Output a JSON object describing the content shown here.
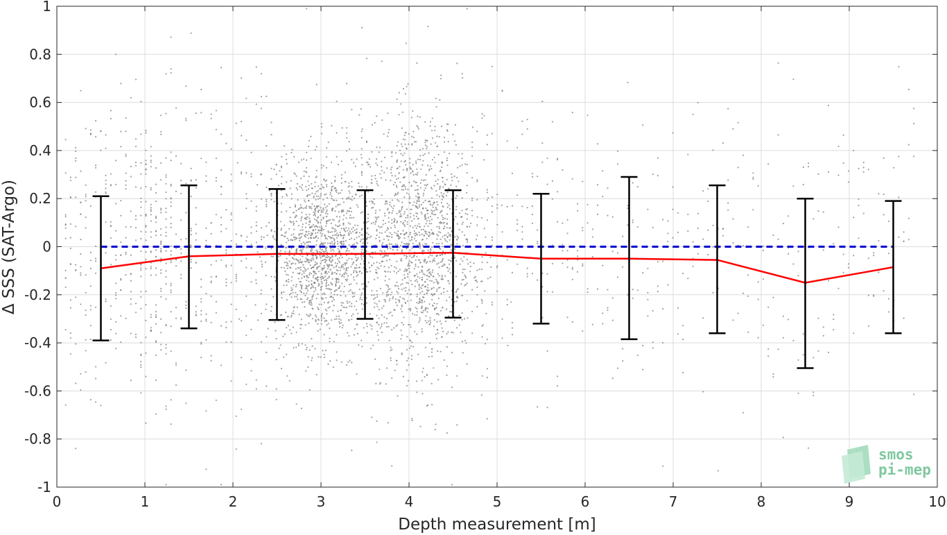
{
  "chart_data": {
    "type": "scatter",
    "title": "",
    "xlabel": "Depth measurement [m]",
    "ylabel": "Δ SSS (SAT-Argo)",
    "xlim": [
      0,
      10
    ],
    "ylim": [
      -1,
      1
    ],
    "x_ticks": [
      0,
      1,
      2,
      3,
      4,
      5,
      6,
      7,
      8,
      9,
      10
    ],
    "x_tick_labels": [
      "0",
      "1",
      "2",
      "3",
      "4",
      "5",
      "6",
      "7",
      "8",
      "9",
      "10"
    ],
    "y_ticks": [
      1,
      0.8,
      0.6,
      0.4,
      0.2,
      0,
      -0.2,
      -0.4,
      -0.6,
      -0.8,
      -1
    ],
    "y_tick_labels": [
      "1",
      "0.8",
      "0.6",
      "0.4",
      "0.2",
      "0",
      "-0.2",
      "-0.4",
      "-0.6",
      "-0.8",
      "-1"
    ],
    "grid": true,
    "series": [
      {
        "kind": "scatter",
        "color": "#808080",
        "description_clusters": [
          {
            "x_center": 3.0,
            "x_spread": 0.35,
            "y_center": -0.03,
            "y_spread": 0.18
          },
          {
            "x_center": 4.1,
            "x_spread": 0.4,
            "y_center": 0.02,
            "y_spread": 0.25
          }
        ]
      },
      {
        "kind": "line",
        "color": "#ff0000",
        "x": [
          0.5,
          1.5,
          2.5,
          3.5,
          4.5,
          5.5,
          6.5,
          7.5,
          8.5,
          9.5
        ],
        "y": [
          -0.09,
          -0.04,
          -0.03,
          -0.03,
          -0.025,
          -0.05,
          -0.05,
          -0.055,
          -0.15,
          -0.085
        ]
      },
      {
        "kind": "errorbar",
        "color": "#000000",
        "x": [
          0.5,
          1.5,
          2.5,
          3.5,
          4.5,
          5.5,
          6.5,
          7.5,
          8.5,
          9.5
        ],
        "upper": [
          0.21,
          0.255,
          0.24,
          0.235,
          0.235,
          0.22,
          0.29,
          0.255,
          0.2,
          0.19
        ],
        "lower": [
          -0.39,
          -0.34,
          -0.305,
          -0.3,
          -0.295,
          -0.32,
          -0.385,
          -0.36,
          -0.505,
          -0.36
        ]
      },
      {
        "kind": "reference-line",
        "color": "#0000cc",
        "style": "dashed",
        "x": [
          0.5,
          9.5
        ],
        "y": [
          0,
          0
        ]
      }
    ]
  },
  "logo": {
    "line1": "smos",
    "line2": "pi-mep",
    "color": "#7fc8a0"
  }
}
